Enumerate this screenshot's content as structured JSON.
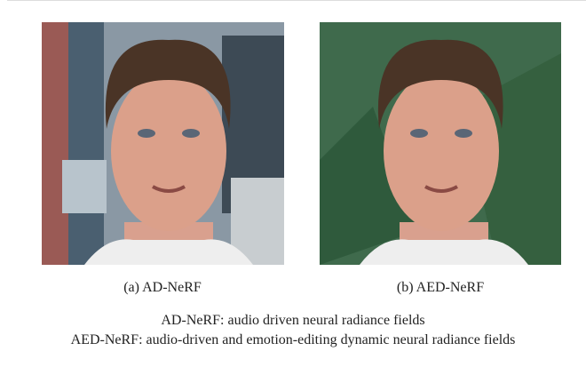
{
  "panels": [
    {
      "label": "(a) AD-NeRF"
    },
    {
      "label": "(b) AED-NeRF"
    }
  ],
  "caption": {
    "lines": [
      "AD-NeRF: audio driven neural radiance fields",
      "AED-NeRF: audio-driven and emotion-editing dynamic neural radiance fields"
    ]
  }
}
